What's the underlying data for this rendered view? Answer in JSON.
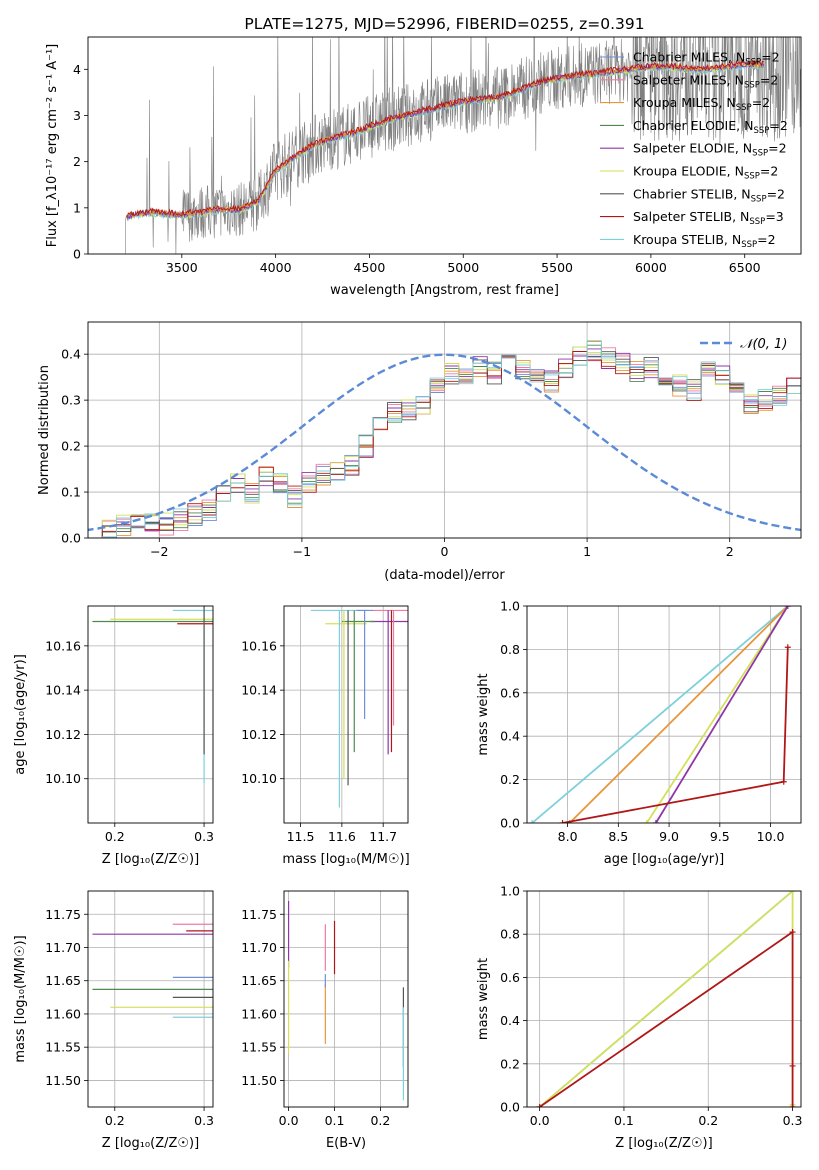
{
  "colors": {
    "chabrier_miles": "#6f8fd8",
    "salpeter_miles": "#f07aa0",
    "kroupa_miles": "#e8963a",
    "chabrier_elodie": "#4e8a4e",
    "salpeter_elodie": "#8e36a8",
    "kroupa_elodie": "#d4e05a",
    "chabrier_stelib": "#555555",
    "salpeter_stelib": "#b01818",
    "kroupa_stelib": "#7ed0dc",
    "data": "#808080",
    "normal": "#5b8bd6"
  },
  "chart_data": [
    {
      "id": "spectrum",
      "type": "line",
      "title": "PLATE=1275, MJD=52996, FIBERID=0255, z=0.391",
      "xlabel": "wavelength [Angstrom, rest frame]",
      "ylabel": "Flux [f_λ10⁻¹⁷ erg cm⁻² s⁻¹ A⁻¹]",
      "xlim": [
        3000,
        6800
      ],
      "ylim": [
        0,
        4.7
      ],
      "xticks": [
        "3500",
        "4000",
        "4500",
        "5000",
        "5500",
        "6000",
        "6500"
      ],
      "yticks": [
        "0",
        "1",
        "2",
        "3",
        "4"
      ],
      "x": [
        3200,
        3250,
        3300,
        3350,
        3400,
        3450,
        3500,
        3600,
        3700,
        3800,
        3900,
        4000,
        4100,
        4200,
        4300,
        4400,
        4500,
        4600,
        4700,
        4800,
        4900,
        5000,
        5100,
        5200,
        5300,
        5400,
        5500,
        5600,
        5700,
        5800,
        5900,
        6000,
        6100,
        6200,
        6300,
        6400,
        6500,
        6600
      ],
      "model_flux": [
        0.8,
        0.85,
        0.88,
        0.9,
        0.87,
        0.85,
        0.84,
        0.9,
        0.95,
        0.95,
        1.1,
        1.8,
        2.1,
        2.35,
        2.5,
        2.6,
        2.75,
        2.9,
        3.0,
        3.1,
        3.2,
        3.3,
        3.35,
        3.4,
        3.55,
        3.7,
        3.8,
        3.85,
        3.9,
        3.95,
        4.0,
        4.05,
        4.05,
        4.0,
        4.0,
        4.05,
        4.1,
        4.1
      ],
      "legend": [
        {
          "label": "Chabrier MILES, N",
          "sub": "SSP",
          "n": "=2",
          "color_key": "chabrier_miles"
        },
        {
          "label": "Salpeter MILES, N",
          "sub": "SSP",
          "n": "=2",
          "color_key": "salpeter_miles"
        },
        {
          "label": "Kroupa MILES, N",
          "sub": "SSP",
          "n": "=2",
          "color_key": "kroupa_miles"
        },
        {
          "label": "Chabrier ELODIE, N",
          "sub": "SSP",
          "n": "=2",
          "color_key": "chabrier_elodie"
        },
        {
          "label": "Salpeter ELODIE, N",
          "sub": "SSP",
          "n": "=2",
          "color_key": "salpeter_elodie"
        },
        {
          "label": "Kroupa ELODIE, N",
          "sub": "SSP",
          "n": "=2",
          "color_key": "kroupa_elodie"
        },
        {
          "label": "Chabrier STELIB, N",
          "sub": "SSP",
          "n": "=2",
          "color_key": "chabrier_stelib"
        },
        {
          "label": "Salpeter STELIB, N",
          "sub": "SSP",
          "n": "=3",
          "color_key": "salpeter_stelib"
        },
        {
          "label": "Kroupa STELIB, N",
          "sub": "SSP",
          "n": "=2",
          "color_key": "kroupa_stelib"
        }
      ]
    },
    {
      "id": "residuals",
      "type": "line",
      "xlabel": "(data-model)/error",
      "ylabel": "Normed distribution",
      "xlim": [
        -2.5,
        2.5
      ],
      "ylim": [
        0,
        0.47
      ],
      "xticks": [
        "−2",
        "−1",
        "0",
        "1",
        "2"
      ],
      "yticks": [
        "0.0",
        "0.1",
        "0.2",
        "0.3",
        "0.4"
      ],
      "grid": true,
      "legend_label": "𝒩(0, 1)",
      "bin_edges_start": -2.5,
      "bin_width": 0.1,
      "hist_mean": [
        0.02,
        0.02,
        0.03,
        0.04,
        0.03,
        0.03,
        0.04,
        0.05,
        0.06,
        0.09,
        0.12,
        0.1,
        0.13,
        0.12,
        0.09,
        0.12,
        0.14,
        0.14,
        0.16,
        0.2,
        0.24,
        0.27,
        0.28,
        0.29,
        0.33,
        0.36,
        0.35,
        0.37,
        0.36,
        0.38,
        0.37,
        0.36,
        0.34,
        0.37,
        0.4,
        0.41,
        0.39,
        0.38,
        0.36,
        0.37,
        0.34,
        0.33,
        0.32,
        0.36,
        0.35,
        0.33,
        0.29,
        0.3,
        0.31,
        0.33,
        0.27,
        0.26,
        0.24,
        0.24,
        0.22,
        0.23,
        0.22,
        0.21,
        0.18,
        0.17,
        0.13,
        0.12,
        0.1,
        0.09,
        0.08,
        0.08,
        0.07,
        0.07,
        0.06,
        0.06,
        0.06,
        0.05,
        0.04,
        0.04,
        0.04,
        0.03,
        0.03,
        0.03,
        0.03,
        0.03
      ]
    },
    {
      "id": "age_vs_Z",
      "type": "scatter",
      "xlabel": "Z [log₁₀(Z/Z☉)]",
      "ylabel": "age  [log₁₀(age/yr)]",
      "xlim": [
        0.17,
        0.31
      ],
      "ylim": [
        10.08,
        10.178
      ],
      "xticks": [
        "0.2",
        "0.3"
      ],
      "yticks": [
        "10.10",
        "10.12",
        "10.14",
        "10.16"
      ],
      "points": [
        {
          "z": 0.3,
          "age": 10.172,
          "xerr": 0.105,
          "color_key": "kroupa_elodie"
        },
        {
          "z": 0.3,
          "age": 10.171,
          "xerr": 0.125,
          "color_key": "chabrier_elodie"
        },
        {
          "z": 0.3,
          "age": 10.17,
          "xerr": 0.03,
          "color_key": "salpeter_stelib"
        },
        {
          "z": 0.3,
          "age": 10.176,
          "xerr": 0.035,
          "color_key": "kroupa_stelib"
        },
        {
          "z": 0.3,
          "age": 10.176,
          "yerr": 0.078,
          "color_key": "kroupa_stelib"
        },
        {
          "z": 0.3,
          "age": 10.176,
          "yerr": 0.065,
          "color_key": "chabrier_stelib"
        }
      ]
    },
    {
      "id": "age_vs_mass",
      "type": "scatter",
      "xlabel": "mass [log₁₀(M/M☉)]",
      "xlim": [
        11.46,
        11.76
      ],
      "ylim": [
        10.08,
        10.178
      ],
      "xticks": [
        "11.5",
        "11.6",
        "11.7"
      ],
      "yticks": [
        "10.10",
        "10.12",
        "10.14",
        "10.16"
      ],
      "points": [
        {
          "mass": 11.595,
          "age": 10.176,
          "xerr": 0.07,
          "color_key": "kroupa_stelib"
        },
        {
          "mass": 11.72,
          "age": 10.171,
          "xerr": 0.05,
          "color_key": "salpeter_elodie"
        },
        {
          "mass": 11.61,
          "age": 10.17,
          "xerr": 0.05,
          "color_key": "kroupa_elodie"
        },
        {
          "mass": 11.64,
          "age": 10.171,
          "xerr": 0.04,
          "color_key": "chabrier_elodie"
        },
        {
          "mass": 11.72,
          "age": 10.176,
          "xerr": 0.05,
          "color_key": "salpeter_miles"
        },
        {
          "mass": 11.655,
          "age": 10.176,
          "xerr": 0.02,
          "color_key": "chabrier_miles"
        }
      ]
    },
    {
      "id": "mass_weight_vs_age",
      "type": "line",
      "xlabel": "age  [log₁₀(age/yr)]",
      "ylabel": "mass weight",
      "xlim": [
        7.6,
        10.3
      ],
      "ylim": [
        0,
        1
      ],
      "xticks": [
        "8.0",
        "8.5",
        "9.0",
        "9.5",
        "10.0"
      ],
      "yticks": [
        "0.0",
        "0.2",
        "0.4",
        "0.6",
        "0.8",
        "1.0"
      ],
      "series": [
        {
          "color_key": "kroupa_stelib",
          "age": [
            7.65,
            10.17
          ],
          "weight": [
            0.0,
            1.0
          ]
        },
        {
          "color_key": "kroupa_miles",
          "age": [
            8.02,
            10.17
          ],
          "weight": [
            0.0,
            1.0
          ]
        },
        {
          "color_key": "kroupa_elodie",
          "age": [
            8.78,
            10.17
          ],
          "weight": [
            0.0,
            1.0
          ]
        },
        {
          "color_key": "salpeter_elodie",
          "age": [
            8.87,
            10.17
          ],
          "weight": [
            0.0,
            1.0
          ]
        },
        {
          "color_key": "salpeter_stelib",
          "age": [
            7.95,
            10.13,
            10.17
          ],
          "weight": [
            0.0,
            0.19,
            0.81
          ]
        }
      ]
    },
    {
      "id": "mass_vs_Z",
      "type": "scatter",
      "xlabel": "Z [log₁₀(Z/Z☉)]",
      "ylabel": "mass [log₁₀(M/M☉)]",
      "xlim": [
        0.17,
        0.31
      ],
      "ylim": [
        11.46,
        11.785
      ],
      "xticks": [
        "0.2",
        "0.3"
      ],
      "yticks": [
        "11.50",
        "11.55",
        "11.60",
        "11.65",
        "11.70",
        "11.75"
      ],
      "points": [
        {
          "z": 0.3,
          "mass": 11.72,
          "xerr": 0.125,
          "color_key": "salpeter_elodie"
        },
        {
          "z": 0.3,
          "mass": 11.637,
          "xerr": 0.125,
          "color_key": "chabrier_elodie"
        },
        {
          "z": 0.3,
          "mass": 11.61,
          "xerr": 0.105,
          "color_key": "kroupa_elodie"
        },
        {
          "z": 0.3,
          "mass": 11.595,
          "xerr": 0.035,
          "color_key": "kroupa_stelib"
        },
        {
          "z": 0.3,
          "mass": 11.625,
          "xerr": 0.035,
          "color_key": "chabrier_stelib"
        },
        {
          "z": 0.3,
          "mass": 11.655,
          "xerr": 0.035,
          "color_key": "chabrier_miles"
        },
        {
          "z": 0.3,
          "mass": 11.735,
          "xerr": 0.035,
          "color_key": "salpeter_miles"
        },
        {
          "z": 0.3,
          "mass": 11.725,
          "xerr": 0.02,
          "color_key": "salpeter_stelib"
        }
      ]
    },
    {
      "id": "mass_vs_ebv",
      "type": "scatter",
      "xlabel": "E(B-V)",
      "xlim": [
        -0.01,
        0.26
      ],
      "ylim": [
        11.46,
        11.785
      ],
      "xticks": [
        "0.0",
        "0.1",
        "0.2"
      ],
      "yticks": [
        "11.50",
        "11.55",
        "11.60",
        "11.65",
        "11.70",
        "11.75"
      ],
      "points": [
        {
          "ebv": 0.0,
          "mass": 11.72,
          "yerr": 0.05,
          "color_key": "salpeter_elodie"
        },
        {
          "ebv": 0.0,
          "mass": 11.61,
          "yerr": 0.07,
          "color_key": "kroupa_elodie"
        },
        {
          "ebv": 0.08,
          "mass": 11.7,
          "yerr": 0.035,
          "color_key": "salpeter_miles"
        },
        {
          "ebv": 0.08,
          "mass": 11.6,
          "yerr": 0.045,
          "color_key": "kroupa_miles"
        },
        {
          "ebv": 0.08,
          "mass": 11.65,
          "yerr": 0.01,
          "color_key": "chabrier_miles"
        },
        {
          "ebv": 0.1,
          "mass": 11.7,
          "yerr": 0.04,
          "color_key": "salpeter_stelib"
        },
        {
          "ebv": 0.25,
          "mass": 11.58,
          "yerr": 0.06,
          "color_key": "chabrier_stelib"
        },
        {
          "ebv": 0.25,
          "mass": 11.54,
          "yerr": 0.07,
          "color_key": "kroupa_stelib"
        }
      ]
    },
    {
      "id": "mass_weight_vs_Z",
      "type": "line",
      "xlabel": "Z [log₁₀(Z/Z☉)]",
      "ylabel": "mass weight",
      "xlim": [
        -0.015,
        0.31
      ],
      "ylim": [
        0,
        1
      ],
      "xticks": [
        "0.0",
        "0.1",
        "0.2",
        "0.3"
      ],
      "yticks": [
        "0.0",
        "0.2",
        "0.4",
        "0.6",
        "0.8",
        "1.0"
      ],
      "series": [
        {
          "color_key": "kroupa_stelib",
          "z": [
            0.0,
            0.3
          ],
          "weight": [
            0.0,
            1.0
          ]
        },
        {
          "color_key": "kroupa_elodie",
          "z": [
            0.0,
            0.3,
            0.3
          ],
          "weight": [
            0.0,
            1.0,
            0.01
          ]
        },
        {
          "color_key": "salpeter_stelib",
          "z": [
            0.0,
            0.3,
            0.3,
            0.3
          ],
          "weight": [
            0.0,
            0.81,
            0.19,
            0.0
          ]
        }
      ]
    }
  ]
}
